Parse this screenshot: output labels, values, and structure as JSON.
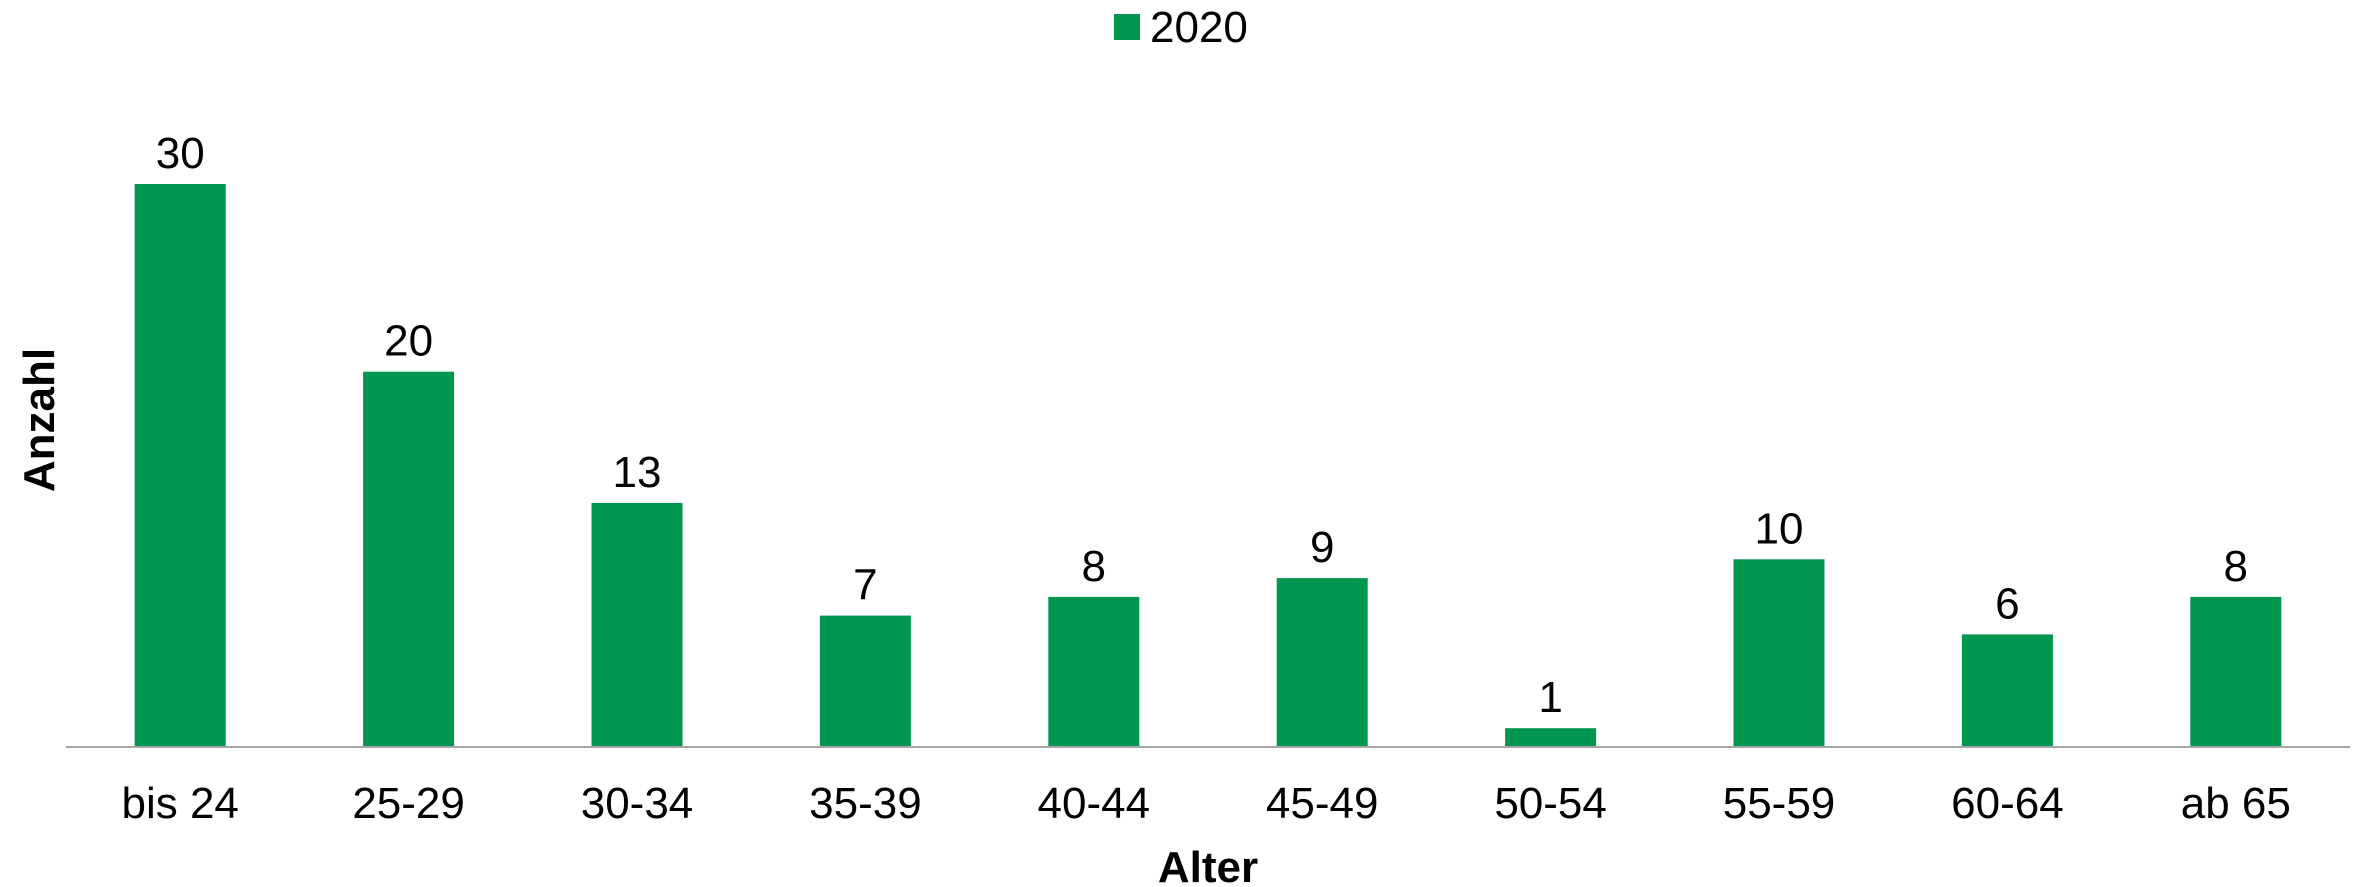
{
  "chart_data": {
    "type": "bar",
    "categories": [
      "bis 24",
      "25-29",
      "30-34",
      "35-39",
      "40-44",
      "45-49",
      "50-54",
      "55-59",
      "60-64",
      "ab 65"
    ],
    "series": [
      {
        "name": "2020",
        "color": "#009650",
        "values": [
          30,
          20,
          13,
          7,
          8,
          9,
          1,
          10,
          6,
          8
        ]
      }
    ],
    "xlabel": "Alter",
    "ylabel": "Anzahl",
    "ylim": [
      0,
      30
    ],
    "grid": false,
    "legend": "top-center",
    "axis_color": "#A6A6A6"
  }
}
